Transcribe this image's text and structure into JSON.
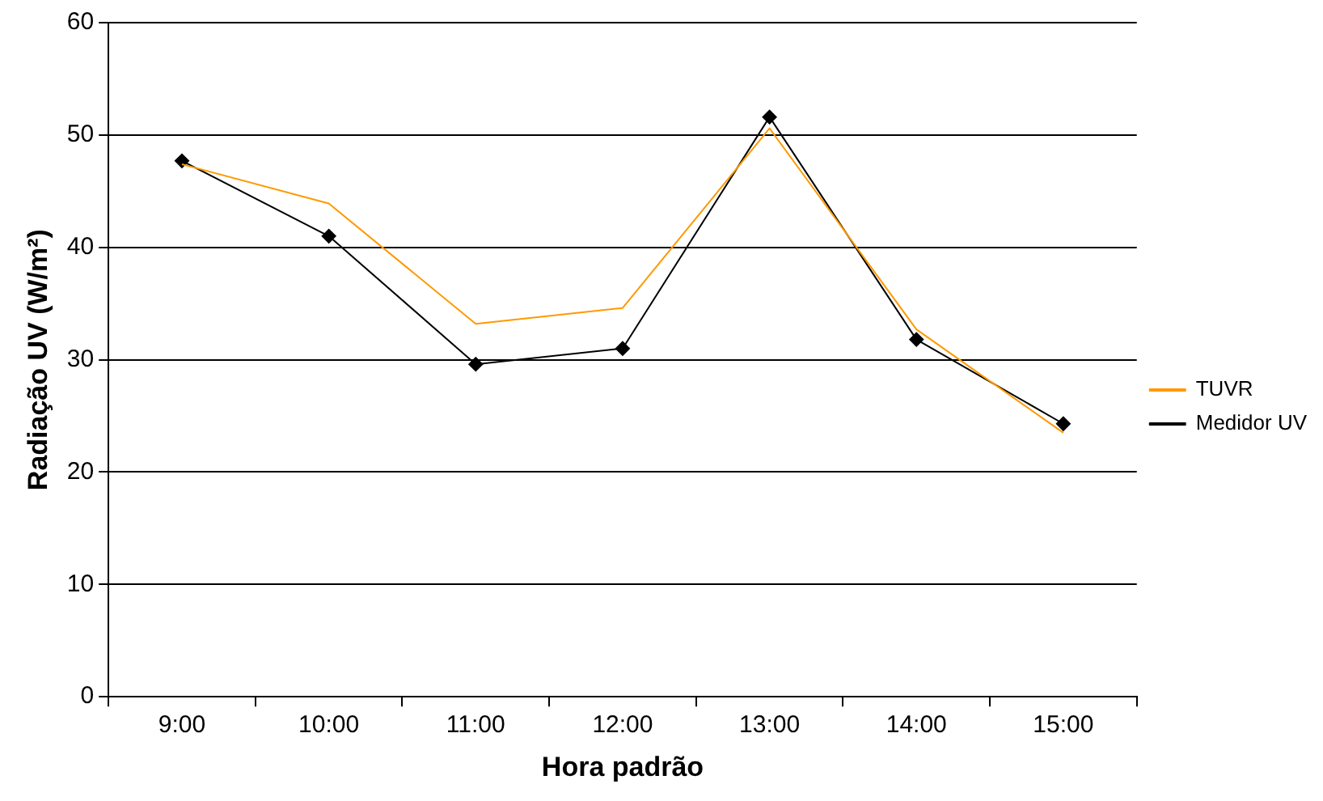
{
  "chart_data": {
    "type": "line",
    "xlabel": "Hora padrão",
    "ylabel": "Radiação UV (W/m²)",
    "categories": [
      "9:00",
      "10:00",
      "11:00",
      "12:00",
      "13:00",
      "14:00",
      "15:00"
    ],
    "series": [
      {
        "name": "TUVR",
        "color": "#ff9900",
        "marker": "none",
        "values": [
          47.4,
          43.9,
          33.2,
          34.6,
          50.6,
          32.7,
          23.5
        ]
      },
      {
        "name": "Medidor UV",
        "color": "#000000",
        "marker": "diamond",
        "values": [
          47.7,
          41.0,
          29.6,
          31.0,
          51.6,
          31.8,
          24.3
        ]
      }
    ],
    "ylim": [
      0,
      60
    ],
    "yticks": [
      0,
      10,
      20,
      30,
      40,
      50,
      60
    ],
    "grid": "y",
    "legend": "right",
    "line_style": "solid"
  }
}
